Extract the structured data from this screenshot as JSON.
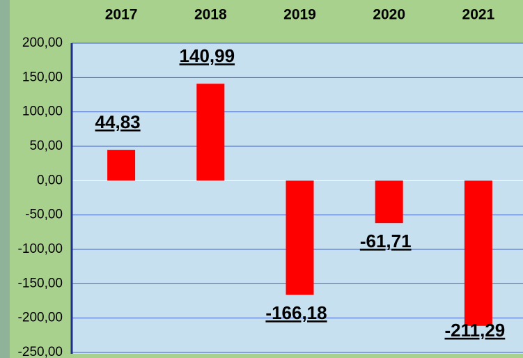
{
  "chart_data": {
    "type": "bar",
    "categories": [
      "2017",
      "2018",
      "2019",
      "2020",
      "2021"
    ],
    "values": [
      44.83,
      140.99,
      -166.18,
      -61.71,
      -211.29
    ],
    "value_labels": [
      "44,83",
      "140,99",
      "-166,18",
      "-61,71",
      "-211,29"
    ],
    "color": "#ff0000",
    "ylim": [
      -250,
      200
    ],
    "yticks": [
      {
        "value": -250,
        "label": "-250,00"
      },
      {
        "value": -200,
        "label": "-200,00"
      },
      {
        "value": -150,
        "label": "-150,00"
      },
      {
        "value": -100,
        "label": "-100,00"
      },
      {
        "value": -50,
        "label": "-50,00"
      },
      {
        "value": 0,
        "label": "0,00"
      },
      {
        "value": 50,
        "label": "50,00"
      },
      {
        "value": 100,
        "label": "100,00"
      },
      {
        "value": 150,
        "label": "150,00"
      },
      {
        "value": 200,
        "label": "200,00"
      }
    ],
    "grid": true
  }
}
